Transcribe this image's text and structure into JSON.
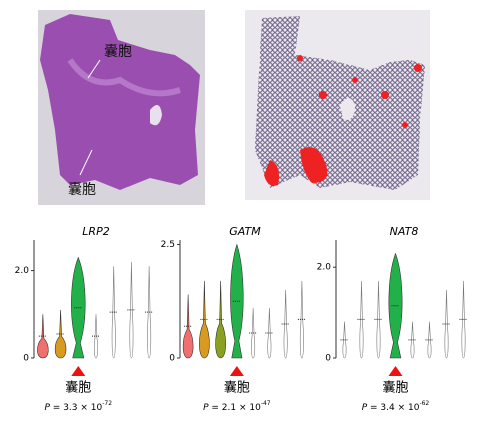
{
  "image_labels": [
    "囊胞",
    "囊胞"
  ],
  "chart_data": [
    {
      "type": "violin",
      "title": "LRP2",
      "ylim": [
        0,
        2.7
      ],
      "yticks": [
        0,
        {
          "value": 2,
          "label": "2.0"
        }
      ],
      "values": [
        1.0,
        1.1,
        2.3,
        1.0,
        2.1,
        2.2,
        2.1
      ],
      "colors": [
        "#f07070",
        "#d99a20",
        "#22b04a",
        "#999999",
        "#999999",
        "#999999",
        "#999999"
      ],
      "highlight_label": "囊胞",
      "p_value": {
        "symbol": "P",
        "text": " = 3.3 × 10",
        "exponent": "-72"
      }
    },
    {
      "type": "violin",
      "title": "GATM",
      "ylim": [
        0,
        2.6
      ],
      "yticks": [
        0,
        2.5
      ],
      "values": [
        1.4,
        1.7,
        1.7,
        2.5,
        1.1,
        1.1,
        1.5,
        1.7
      ],
      "colors": [
        "#f07070",
        "#d99a20",
        "#8aa020",
        "#22b04a",
        "#999999",
        "#999999",
        "#999999",
        "#999999"
      ],
      "highlight_label": "囊胞",
      "p_value": {
        "symbol": "P",
        "text": " = 2.1 × 10",
        "exponent": "-47"
      }
    },
    {
      "type": "violin",
      "title": "NAT8",
      "ylim": [
        0,
        2.6
      ],
      "yticks": [
        0,
        {
          "value": 2,
          "label": "2.0"
        }
      ],
      "values": [
        0.8,
        1.7,
        1.7,
        2.3,
        0.8,
        0.8,
        1.5,
        1.7
      ],
      "colors": [
        "#999999",
        "#999999",
        "#999999",
        "#22b04a",
        "#999999",
        "#999999",
        "#999999",
        "#999999"
      ],
      "highlight_label": "囊胞",
      "p_value": {
        "symbol": "P",
        "text": " = 3.4 × 10",
        "exponent": "-62"
      }
    }
  ]
}
